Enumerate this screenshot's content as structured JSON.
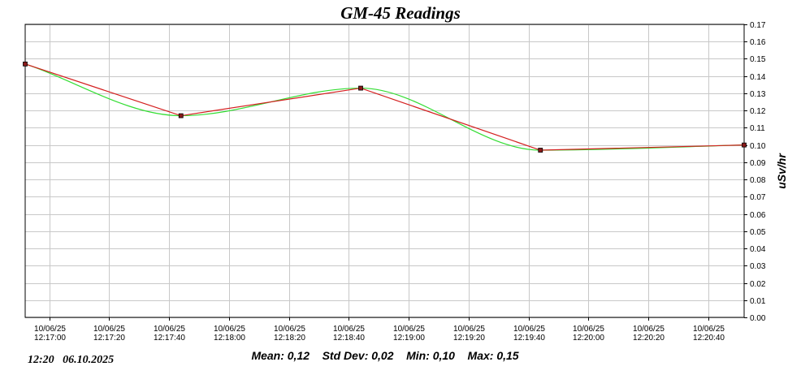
{
  "chart_data": {
    "type": "line",
    "title": "GM-45 Readings",
    "ylabel": "uSv/hr",
    "xlabel": "",
    "ylim": [
      0.0,
      0.17
    ],
    "y_ticks": [
      "0.00",
      "0.01",
      "0.02",
      "0.03",
      "0.04",
      "0.05",
      "0.06",
      "0.07",
      "0.08",
      "0.09",
      "0.10",
      "0.11",
      "0.12",
      "0.13",
      "0.14",
      "0.15",
      "0.16",
      "0.17"
    ],
    "x_range": [
      "10/06/25 12:16:52",
      "10/06/25 12:20:52"
    ],
    "x_ticks": [
      {
        "date": "10/06/25",
        "time": "12:17:00"
      },
      {
        "date": "10/06/25",
        "time": "12:17:20"
      },
      {
        "date": "10/06/25",
        "time": "12:17:40"
      },
      {
        "date": "10/06/25",
        "time": "12:18:00"
      },
      {
        "date": "10/06/25",
        "time": "12:18:20"
      },
      {
        "date": "10/06/25",
        "time": "12:18:40"
      },
      {
        "date": "10/06/25",
        "time": "12:19:00"
      },
      {
        "date": "10/06/25",
        "time": "12:19:20"
      },
      {
        "date": "10/06/25",
        "time": "12:19:40"
      },
      {
        "date": "10/06/25",
        "time": "12:20:00"
      },
      {
        "date": "10/06/25",
        "time": "12:20:20"
      },
      {
        "date": "10/06/25",
        "time": "12:20:40"
      }
    ],
    "grid": true,
    "y_axis_side": "right",
    "series": [
      {
        "color": "#d42020",
        "style": "straight",
        "markers": true,
        "points": [
          {
            "x": "12:16:52",
            "y": 0.147
          },
          {
            "x": "12:17:44",
            "y": 0.117
          },
          {
            "x": "12:18:44",
            "y": 0.133
          },
          {
            "x": "12:19:44",
            "y": 0.097
          },
          {
            "x": "12:20:52",
            "y": 0.1
          }
        ]
      },
      {
        "color": "#33dd33",
        "style": "smooth",
        "markers": false,
        "points": [
          {
            "x": "12:16:52",
            "y": 0.147
          },
          {
            "x": "12:17:44",
            "y": 0.117
          },
          {
            "x": "12:18:44",
            "y": 0.133
          },
          {
            "x": "12:19:44",
            "y": 0.097
          },
          {
            "x": "12:20:52",
            "y": 0.1
          }
        ]
      }
    ]
  },
  "footer": {
    "datetime": "12:20   06.10.2025",
    "stats": "Mean: 0,12    Std Dev: 0,02    Min: 0,10    Max: 0,15"
  },
  "colors": {
    "grid": "#c8c8c8",
    "axis": "#000000",
    "marker_fill": "#8b1a1a"
  }
}
